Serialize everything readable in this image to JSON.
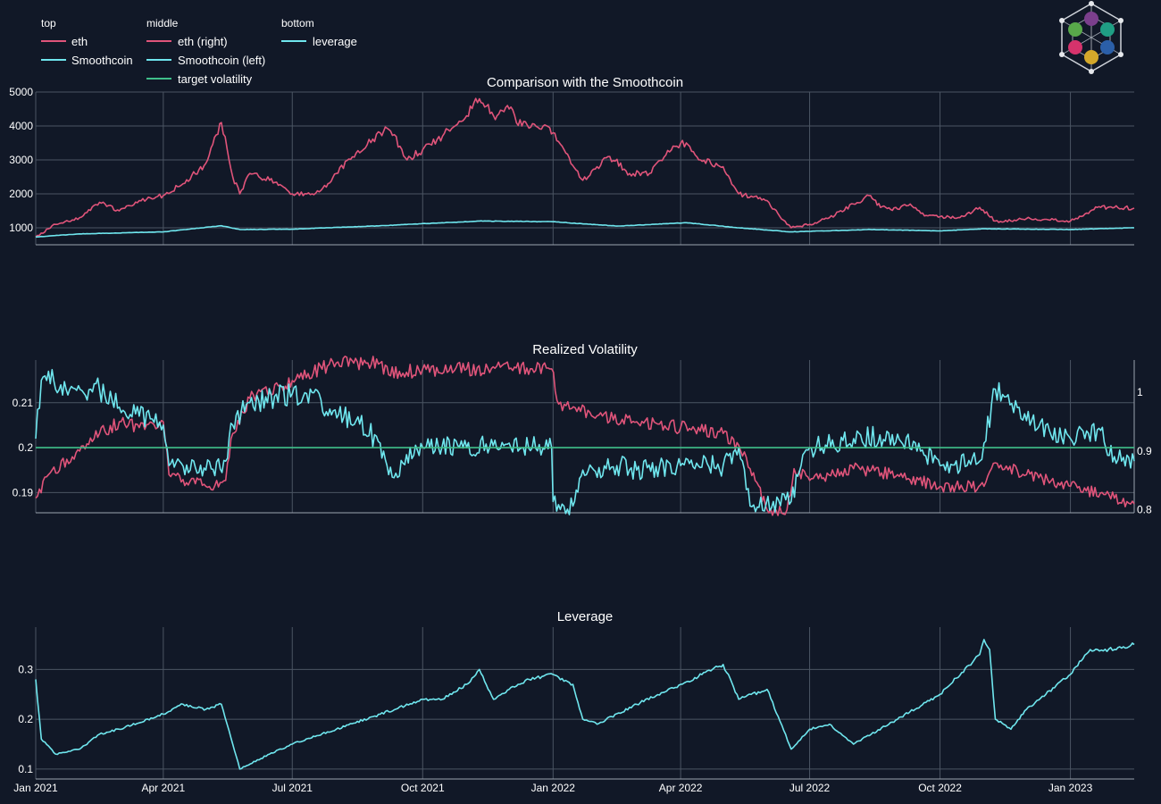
{
  "colors": {
    "background": "#111827",
    "eth": "#e0547a",
    "smoothcoin": "#6fe6ee",
    "target": "#3fbf8a",
    "grid": "#4b5563",
    "text": "#ffffff"
  },
  "logo_icon": "hexagon-network-logo-icon",
  "legend": {
    "groups": [
      {
        "title": "top",
        "items": [
          {
            "label": "eth",
            "color": "#e0547a"
          },
          {
            "label": "Smoothcoin",
            "color": "#6fe6ee"
          }
        ]
      },
      {
        "title": "middle",
        "items": [
          {
            "label": "eth (right)",
            "color": "#e0547a"
          },
          {
            "label": "Smoothcoin (left)",
            "color": "#6fe6ee"
          },
          {
            "label": "target volatility",
            "color": "#3fbf8a"
          }
        ]
      },
      {
        "title": "bottom",
        "items": [
          {
            "label": "leverage",
            "color": "#6fe6ee"
          }
        ]
      }
    ]
  },
  "x_axis": {
    "start": "2021-01-01",
    "end": "2023-02-15",
    "ticks": [
      "Jan 2021",
      "Apr 2021",
      "Jul 2021",
      "Oct 2021",
      "Jan 2022",
      "Apr 2022",
      "Jul 2022",
      "Oct 2022",
      "Jan 2023"
    ],
    "tick_dates": [
      "2021-01-01",
      "2021-04-01",
      "2021-07-01",
      "2021-10-01",
      "2022-01-01",
      "2022-04-01",
      "2022-07-01",
      "2022-10-01",
      "2023-01-01"
    ]
  },
  "chart_data": [
    {
      "type": "line",
      "title": "Comparison with the Smoothcoin",
      "ylim": [
        500,
        5000
      ],
      "yticks": [
        1000,
        2000,
        3000,
        4000,
        5000
      ],
      "series": [
        {
          "name": "eth",
          "color": "#e0547a",
          "points": [
            [
              "2021-01-01",
              730
            ],
            [
              "2021-01-15",
              1100
            ],
            [
              "2021-02-01",
              1300
            ],
            [
              "2021-02-15",
              1750
            ],
            [
              "2021-03-01",
              1500
            ],
            [
              "2021-03-15",
              1800
            ],
            [
              "2021-04-01",
              1950
            ],
            [
              "2021-04-15",
              2300
            ],
            [
              "2021-05-01",
              2900
            ],
            [
              "2021-05-12",
              4100
            ],
            [
              "2021-05-20",
              2500
            ],
            [
              "2021-05-25",
              2000
            ],
            [
              "2021-06-01",
              2600
            ],
            [
              "2021-06-15",
              2400
            ],
            [
              "2021-07-01",
              2000
            ],
            [
              "2021-07-15",
              2000
            ],
            [
              "2021-07-25",
              2200
            ],
            [
              "2021-08-01",
              2600
            ],
            [
              "2021-08-15",
              3200
            ],
            [
              "2021-09-01",
              3800
            ],
            [
              "2021-09-07",
              3900
            ],
            [
              "2021-09-15",
              3400
            ],
            [
              "2021-09-20",
              3000
            ],
            [
              "2021-10-01",
              3300
            ],
            [
              "2021-10-15",
              3700
            ],
            [
              "2021-11-01",
              4300
            ],
            [
              "2021-11-10",
              4800
            ],
            [
              "2021-11-20",
              4300
            ],
            [
              "2021-12-01",
              4500
            ],
            [
              "2021-12-10",
              4000
            ],
            [
              "2021-12-25",
              4000
            ],
            [
              "2022-01-01",
              3800
            ],
            [
              "2022-01-10",
              3200
            ],
            [
              "2022-01-22",
              2400
            ],
            [
              "2022-02-01",
              2800
            ],
            [
              "2022-02-10",
              3100
            ],
            [
              "2022-02-24",
              2600
            ],
            [
              "2022-03-10",
              2600
            ],
            [
              "2022-03-28",
              3400
            ],
            [
              "2022-04-05",
              3500
            ],
            [
              "2022-04-15",
              3000
            ],
            [
              "2022-05-01",
              2800
            ],
            [
              "2022-05-12",
              2000
            ],
            [
              "2022-06-01",
              1800
            ],
            [
              "2022-06-15",
              1100
            ],
            [
              "2022-06-18",
              1000
            ],
            [
              "2022-07-01",
              1100
            ],
            [
              "2022-07-15",
              1300
            ],
            [
              "2022-08-01",
              1700
            ],
            [
              "2022-08-13",
              1950
            ],
            [
              "2022-08-20",
              1600
            ],
            [
              "2022-09-01",
              1550
            ],
            [
              "2022-09-10",
              1700
            ],
            [
              "2022-09-20",
              1350
            ],
            [
              "2022-10-01",
              1330
            ],
            [
              "2022-10-15",
              1300
            ],
            [
              "2022-10-29",
              1600
            ],
            [
              "2022-11-09",
              1200
            ],
            [
              "2022-11-20",
              1200
            ],
            [
              "2022-12-01",
              1270
            ],
            [
              "2022-12-15",
              1250
            ],
            [
              "2023-01-01",
              1200
            ],
            [
              "2023-01-10",
              1350
            ],
            [
              "2023-01-20",
              1600
            ],
            [
              "2023-02-01",
              1600
            ],
            [
              "2023-02-15",
              1580
            ]
          ]
        },
        {
          "name": "Smoothcoin",
          "color": "#6fe6ee",
          "points": [
            [
              "2021-01-01",
              730
            ],
            [
              "2021-02-01",
              820
            ],
            [
              "2021-04-01",
              880
            ],
            [
              "2021-05-12",
              1060
            ],
            [
              "2021-05-25",
              950
            ],
            [
              "2021-07-01",
              960
            ],
            [
              "2021-09-01",
              1060
            ],
            [
              "2021-11-10",
              1200
            ],
            [
              "2022-01-01",
              1180
            ],
            [
              "2022-02-15",
              1050
            ],
            [
              "2022-04-05",
              1150
            ],
            [
              "2022-05-12",
              1000
            ],
            [
              "2022-06-18",
              880
            ],
            [
              "2022-08-13",
              950
            ],
            [
              "2022-10-01",
              910
            ],
            [
              "2022-11-01",
              970
            ],
            [
              "2023-01-01",
              950
            ],
            [
              "2023-02-15",
              1000
            ]
          ]
        }
      ]
    },
    {
      "type": "line",
      "title": "Realized Volatility",
      "ylim_left": [
        0.1855,
        0.2195
      ],
      "yticks_left": [
        0.19,
        0.2,
        0.21
      ],
      "ylim_right": [
        0.795,
        1.055
      ],
      "yticks_right": [
        0.8,
        0.9,
        1
      ],
      "series": [
        {
          "name": "eth (right)",
          "axis": "right",
          "color": "#e0547a",
          "points": [
            [
              "2021-01-01",
              0.82
            ],
            [
              "2021-01-10",
              0.86
            ],
            [
              "2021-02-01",
              0.9
            ],
            [
              "2021-02-15",
              0.93
            ],
            [
              "2021-03-01",
              0.95
            ],
            [
              "2021-03-15",
              0.94
            ],
            [
              "2021-04-01",
              0.95
            ],
            [
              "2021-04-05",
              0.86
            ],
            [
              "2021-05-01",
              0.84
            ],
            [
              "2021-05-15",
              0.85
            ],
            [
              "2021-05-20",
              0.93
            ],
            [
              "2021-06-01",
              0.99
            ],
            [
              "2021-06-15",
              1.0
            ],
            [
              "2021-07-01",
              1.02
            ],
            [
              "2021-08-01",
              1.05
            ],
            [
              "2021-09-01",
              1.05
            ],
            [
              "2021-09-07",
              1.03
            ],
            [
              "2021-10-01",
              1.04
            ],
            [
              "2021-11-01",
              1.04
            ],
            [
              "2021-12-01",
              1.04
            ],
            [
              "2021-12-31",
              1.04
            ],
            [
              "2022-01-05",
              0.98
            ],
            [
              "2022-02-01",
              0.96
            ],
            [
              "2022-03-01",
              0.95
            ],
            [
              "2022-04-01",
              0.94
            ],
            [
              "2022-05-01",
              0.93
            ],
            [
              "2022-05-12",
              0.91
            ],
            [
              "2022-05-20",
              0.87
            ],
            [
              "2022-06-01",
              0.8
            ],
            [
              "2022-06-15",
              0.8
            ],
            [
              "2022-06-20",
              0.87
            ],
            [
              "2022-07-01",
              0.85
            ],
            [
              "2022-08-01",
              0.87
            ],
            [
              "2022-09-01",
              0.86
            ],
            [
              "2022-10-01",
              0.84
            ],
            [
              "2022-11-01",
              0.84
            ],
            [
              "2022-11-09",
              0.88
            ],
            [
              "2022-12-01",
              0.86
            ],
            [
              "2023-01-01",
              0.84
            ],
            [
              "2023-02-01",
              0.82
            ],
            [
              "2023-02-15",
              0.81
            ]
          ]
        },
        {
          "name": "Smoothcoin (left)",
          "axis": "left",
          "color": "#6fe6ee",
          "points": [
            [
              "2021-01-01",
              0.202
            ],
            [
              "2021-01-05",
              0.215
            ],
            [
              "2021-01-10",
              0.217
            ],
            [
              "2021-01-15",
              0.213
            ],
            [
              "2021-02-15",
              0.213
            ],
            [
              "2021-03-01",
              0.209
            ],
            [
              "2021-03-15",
              0.207
            ],
            [
              "2021-04-01",
              0.205
            ],
            [
              "2021-04-05",
              0.196
            ],
            [
              "2021-04-20",
              0.195
            ],
            [
              "2021-05-01",
              0.195
            ],
            [
              "2021-05-15",
              0.197
            ],
            [
              "2021-05-20",
              0.205
            ],
            [
              "2021-06-01",
              0.21
            ],
            [
              "2021-07-01",
              0.212
            ],
            [
              "2021-07-20",
              0.212
            ],
            [
              "2021-07-25",
              0.208
            ],
            [
              "2021-08-15",
              0.206
            ],
            [
              "2021-09-01",
              0.201
            ],
            [
              "2021-09-07",
              0.194
            ],
            [
              "2021-10-01",
              0.2
            ],
            [
              "2021-11-01",
              0.2
            ],
            [
              "2021-12-01",
              0.201
            ],
            [
              "2021-12-31",
              0.2
            ],
            [
              "2022-01-01",
              0.188
            ],
            [
              "2022-01-15",
              0.187
            ],
            [
              "2022-01-22",
              0.195
            ],
            [
              "2022-02-15",
              0.196
            ],
            [
              "2022-03-01",
              0.195
            ],
            [
              "2022-04-01",
              0.196
            ],
            [
              "2022-05-01",
              0.196
            ],
            [
              "2022-05-12",
              0.2
            ],
            [
              "2022-05-20",
              0.187
            ],
            [
              "2022-06-18",
              0.188
            ],
            [
              "2022-06-25",
              0.196
            ],
            [
              "2022-07-01",
              0.2
            ],
            [
              "2022-08-01",
              0.202
            ],
            [
              "2022-09-01",
              0.203
            ],
            [
              "2022-10-01",
              0.196
            ],
            [
              "2022-10-29",
              0.197
            ],
            [
              "2022-11-01",
              0.201
            ],
            [
              "2022-11-09",
              0.213
            ],
            [
              "2022-12-01",
              0.206
            ],
            [
              "2023-01-01",
              0.202
            ],
            [
              "2023-01-20",
              0.204
            ],
            [
              "2023-02-01",
              0.198
            ],
            [
              "2023-02-15",
              0.197
            ]
          ]
        },
        {
          "name": "target volatility",
          "axis": "left",
          "color": "#3fbf8a",
          "points": [
            [
              "2021-01-01",
              0.2
            ],
            [
              "2023-02-15",
              0.2
            ]
          ]
        }
      ]
    },
    {
      "type": "line",
      "title": "Leverage",
      "ylim": [
        0.08,
        0.385
      ],
      "yticks": [
        0.1,
        0.2,
        0.3
      ],
      "series": [
        {
          "name": "leverage",
          "color": "#6fe6ee",
          "points": [
            [
              "2021-01-01",
              0.28
            ],
            [
              "2021-01-05",
              0.16
            ],
            [
              "2021-01-15",
              0.13
            ],
            [
              "2021-02-01",
              0.14
            ],
            [
              "2021-02-15",
              0.17
            ],
            [
              "2021-03-01",
              0.18
            ],
            [
              "2021-04-01",
              0.21
            ],
            [
              "2021-04-15",
              0.23
            ],
            [
              "2021-05-01",
              0.22
            ],
            [
              "2021-05-12",
              0.23
            ],
            [
              "2021-05-20",
              0.15
            ],
            [
              "2021-05-25",
              0.1
            ],
            [
              "2021-06-15",
              0.13
            ],
            [
              "2021-07-01",
              0.15
            ],
            [
              "2021-08-01",
              0.18
            ],
            [
              "2021-09-01",
              0.21
            ],
            [
              "2021-10-01",
              0.24
            ],
            [
              "2021-10-15",
              0.24
            ],
            [
              "2021-11-01",
              0.27
            ],
            [
              "2021-11-10",
              0.3
            ],
            [
              "2021-11-20",
              0.24
            ],
            [
              "2021-12-01",
              0.26
            ],
            [
              "2021-12-15",
              0.28
            ],
            [
              "2022-01-01",
              0.29
            ],
            [
              "2022-01-15",
              0.27
            ],
            [
              "2022-01-22",
              0.2
            ],
            [
              "2022-02-01",
              0.19
            ],
            [
              "2022-03-01",
              0.23
            ],
            [
              "2022-04-01",
              0.27
            ],
            [
              "2022-05-01",
              0.31
            ],
            [
              "2022-05-12",
              0.24
            ],
            [
              "2022-06-01",
              0.26
            ],
            [
              "2022-06-18",
              0.14
            ],
            [
              "2022-07-01",
              0.18
            ],
            [
              "2022-07-15",
              0.19
            ],
            [
              "2022-08-01",
              0.15
            ],
            [
              "2022-09-01",
              0.2
            ],
            [
              "2022-10-01",
              0.25
            ],
            [
              "2022-10-29",
              0.33
            ],
            [
              "2022-11-01",
              0.36
            ],
            [
              "2022-11-05",
              0.34
            ],
            [
              "2022-11-09",
              0.2
            ],
            [
              "2022-11-20",
              0.18
            ],
            [
              "2022-12-01",
              0.22
            ],
            [
              "2023-01-01",
              0.29
            ],
            [
              "2023-01-15",
              0.34
            ],
            [
              "2023-02-01",
              0.34
            ],
            [
              "2023-02-15",
              0.35
            ]
          ]
        }
      ]
    }
  ]
}
